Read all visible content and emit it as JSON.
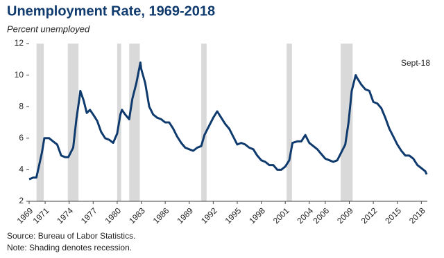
{
  "chart_data": {
    "type": "line",
    "title": "Unemployment Rate, 1969-2018",
    "subtitle": "Percent unemployed",
    "annotation": "Sept-18",
    "source": "Source: Bureau of Labor Statistics.",
    "note": "Note: Shading denotes recession.",
    "color": "#0f3a6e",
    "recession_color": "#d9d9d9",
    "recessions": [
      [
        1969.92,
        1970.83
      ],
      [
        1973.83,
        1975.17
      ],
      [
        1980.0,
        1980.5
      ],
      [
        1981.5,
        1982.83
      ],
      [
        1990.5,
        1991.17
      ],
      [
        2001.17,
        2001.83
      ],
      [
        2007.92,
        2009.42
      ]
    ],
    "x": [
      1969.0,
      1969.5,
      1969.9,
      1970.3,
      1970.6,
      1970.9,
      1971.5,
      1972.0,
      1972.5,
      1973.0,
      1973.5,
      1973.9,
      1974.5,
      1974.9,
      1975.3,
      1975.4,
      1975.8,
      1976.2,
      1976.6,
      1977.0,
      1977.5,
      1978.0,
      1978.5,
      1979.0,
      1979.5,
      1980.0,
      1980.4,
      1980.6,
      1981.0,
      1981.5,
      1981.9,
      1982.4,
      1982.9,
      1983.0,
      1983.5,
      1984.0,
      1984.5,
      1985.0,
      1985.5,
      1986.0,
      1986.5,
      1987.0,
      1987.5,
      1988.0,
      1988.5,
      1989.0,
      1989.5,
      1990.0,
      1990.5,
      1990.9,
      1991.5,
      1992.0,
      1992.5,
      1993.0,
      1993.5,
      1994.0,
      1994.5,
      1995.0,
      1995.5,
      1996.0,
      1996.5,
      1997.0,
      1997.5,
      1998.0,
      1998.5,
      1999.0,
      1999.5,
      2000.0,
      2000.5,
      2001.0,
      2001.5,
      2001.9,
      2002.5,
      2003.0,
      2003.5,
      2004.0,
      2004.5,
      2005.0,
      2005.5,
      2006.0,
      2006.5,
      2007.0,
      2007.5,
      2007.9,
      2008.5,
      2008.9,
      2009.3,
      2009.8,
      2010.0,
      2010.5,
      2011.0,
      2011.5,
      2012.0,
      2012.5,
      2013.0,
      2013.5,
      2014.0,
      2014.5,
      2015.0,
      2015.5,
      2016.0,
      2016.5,
      2017.0,
      2017.5,
      2018.0,
      2018.5,
      2018.67
    ],
    "values": [
      3.4,
      3.5,
      3.5,
      4.4,
      5.1,
      6.0,
      6.0,
      5.8,
      5.6,
      4.9,
      4.8,
      4.8,
      5.4,
      7.2,
      8.6,
      9.0,
      8.4,
      7.6,
      7.8,
      7.5,
      7.1,
      6.4,
      6.0,
      5.9,
      5.7,
      6.3,
      7.5,
      7.8,
      7.5,
      7.2,
      8.5,
      9.5,
      10.8,
      10.4,
      9.5,
      8.0,
      7.5,
      7.3,
      7.2,
      7.0,
      7.0,
      6.6,
      6.1,
      5.7,
      5.4,
      5.3,
      5.2,
      5.4,
      5.5,
      6.2,
      6.8,
      7.3,
      7.7,
      7.3,
      6.9,
      6.6,
      6.1,
      5.6,
      5.7,
      5.6,
      5.4,
      5.3,
      4.9,
      4.6,
      4.5,
      4.3,
      4.3,
      4.0,
      4.0,
      4.2,
      4.6,
      5.7,
      5.8,
      5.8,
      6.2,
      5.7,
      5.5,
      5.3,
      5.0,
      4.7,
      4.6,
      4.5,
      4.6,
      5.0,
      5.6,
      7.0,
      9.0,
      10.0,
      9.8,
      9.4,
      9.1,
      9.0,
      8.3,
      8.2,
      7.9,
      7.3,
      6.6,
      6.1,
      5.6,
      5.2,
      4.9,
      4.9,
      4.7,
      4.3,
      4.1,
      3.9,
      3.7
    ],
    "xlim": [
      1969,
      2018.75
    ],
    "xticks": [
      1969,
      1971,
      1974,
      1977,
      1980,
      1983,
      1986,
      1989,
      1992,
      1995,
      1998,
      2001,
      2004,
      2006,
      2009,
      2012,
      2015,
      2018
    ],
    "ylim": [
      2,
      12
    ],
    "yticks": [
      2,
      4,
      6,
      8,
      10,
      12
    ]
  }
}
